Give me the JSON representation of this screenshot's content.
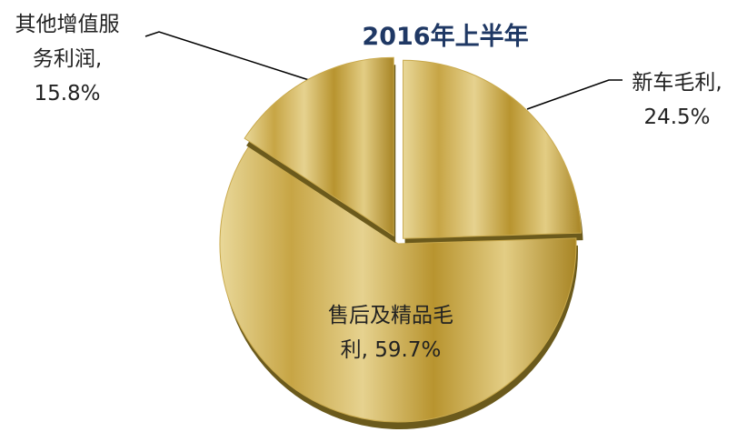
{
  "chart_data": {
    "type": "pie",
    "title": "2016年上半年",
    "categories": [
      "新车毛利",
      "售后及精品毛利",
      "其他增值服务利润"
    ],
    "values": [
      24.5,
      59.7,
      15.8
    ],
    "value_labels": [
      "24.5%",
      "59.7%",
      "15.8%"
    ],
    "label_separator": ",",
    "color": "#c9a94c"
  }
}
